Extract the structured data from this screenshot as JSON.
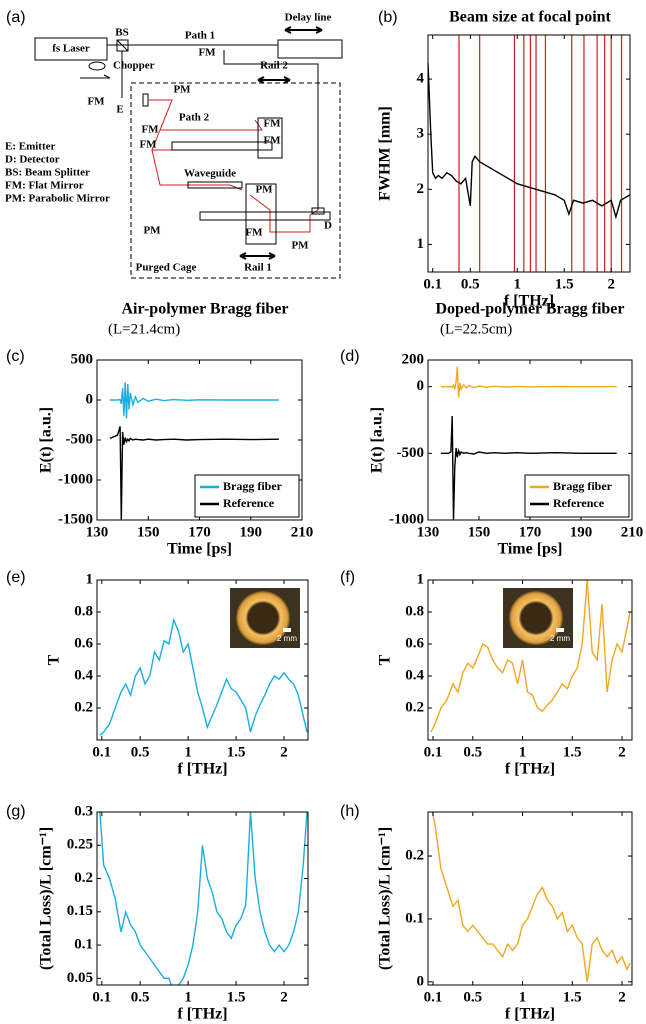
{
  "diagram": {
    "panel": "(a)",
    "labels": [
      "fs Laser",
      "BS",
      "Path 1",
      "Delay line",
      "FM",
      "Chopper",
      "FM",
      "E",
      "PM",
      "Rail 2",
      "Path 2",
      "FM",
      "FM",
      "FM",
      "FM",
      "Waveguide",
      "PM",
      "PM",
      "PM",
      "FM",
      "D",
      "Rail 1",
      "Purged Cage"
    ],
    "legend": [
      "E: Emitter",
      "D: Detector",
      "BS: Beam Splitter",
      "FM: Flat Mirror",
      "PM: Parabolic Mirror"
    ]
  },
  "chart_data": [
    {
      "type": "line",
      "panel": "(b)",
      "title": "Beam size at focal point",
      "x_label": "f [THz]",
      "y_label": "FWHM [mm]",
      "x": [
        0.05,
        0.08,
        0.1,
        0.13,
        0.16,
        0.2,
        0.25,
        0.3,
        0.35,
        0.4,
        0.45,
        0.5,
        0.52,
        0.55,
        0.6,
        0.7,
        0.8,
        0.9,
        1.0,
        1.1,
        1.2,
        1.3,
        1.4,
        1.5,
        1.55,
        1.6,
        1.7,
        1.8,
        1.9,
        2.0,
        2.05,
        2.1,
        2.2
      ],
      "series": [
        {
          "color": "#000000",
          "values": [
            4.3,
            3.0,
            2.3,
            2.2,
            2.25,
            2.2,
            2.3,
            2.25,
            2.15,
            2.1,
            2.2,
            1.7,
            2.5,
            2.6,
            2.5,
            2.4,
            2.3,
            2.2,
            2.1,
            2.05,
            2.0,
            1.95,
            1.9,
            1.8,
            1.55,
            1.8,
            1.75,
            1.8,
            1.7,
            1.8,
            1.5,
            1.8,
            1.9
          ]
        }
      ],
      "vlines": [
        0.38,
        0.6,
        0.97,
        1.07,
        1.14,
        1.2,
        1.3,
        1.58,
        1.71,
        1.85,
        1.93,
        2.0,
        2.11
      ],
      "vline_color": "#cc1f1f",
      "xlim": [
        0.05,
        2.2
      ],
      "xticks": [
        0.1,
        0.5,
        1,
        1.5,
        2
      ],
      "ylim": [
        0.5,
        4.8
      ],
      "yticks": [
        1,
        2,
        3,
        4
      ]
    },
    {
      "type": "line",
      "panel": "(c)",
      "title": "Air-polymer Bragg fiber",
      "subtitle": "(L=21.4cm)",
      "x_label": "Time [ps]",
      "y_label": "E(t) [a.u.]",
      "x": [
        135,
        138,
        139,
        139.5,
        140,
        140.5,
        141,
        141.5,
        142,
        142.5,
        143,
        144,
        145,
        146,
        148,
        150,
        153,
        156,
        160,
        165,
        170,
        180,
        190,
        201
      ],
      "series": [
        {
          "name": "Bragg fiber",
          "color": "#1aaee0",
          "values": [
            0,
            0,
            5,
            -50,
            150,
            -200,
            220,
            -230,
            200,
            -120,
            90,
            -60,
            40,
            -30,
            20,
            -15,
            10,
            -8,
            5,
            -4,
            3,
            0,
            0,
            0
          ]
        },
        {
          "name": "Reference",
          "color": "#000000",
          "values": [
            -480,
            -440,
            -330,
            -1500,
            -400,
            -560,
            -470,
            -520,
            -490,
            -510,
            -480,
            -500,
            -490,
            -495,
            -500,
            -490,
            -500,
            -495,
            -490,
            -500,
            -495,
            -490,
            -495,
            -490
          ]
        }
      ],
      "legend": "lower right",
      "xlim": [
        130,
        210
      ],
      "xticks": [
        130,
        150,
        170,
        190,
        210
      ],
      "ylim": [
        -1500,
        500
      ],
      "yticks": [
        -1500,
        -1000,
        -500,
        0,
        500
      ]
    },
    {
      "type": "line",
      "panel": "(d)",
      "title": "Doped-polymer Bragg fiber",
      "subtitle": "(L=22.5cm)",
      "x_label": "Time [ps]",
      "y_label": "E(t) [a.u.]",
      "x": [
        135,
        138,
        139,
        139.5,
        140,
        140.5,
        141,
        141.5,
        142,
        142.5,
        143,
        144,
        145,
        146,
        148,
        150,
        153,
        156,
        160,
        165,
        170,
        180,
        190,
        204
      ],
      "series": [
        {
          "name": "Bragg fiber",
          "color": "#f0a820",
          "values": [
            0,
            0,
            2,
            -5,
            10,
            -20,
            40,
            150,
            -80,
            30,
            -20,
            15,
            -10,
            8,
            -6,
            5,
            -4,
            3,
            -3,
            2,
            -2,
            1,
            0,
            0
          ]
        },
        {
          "name": "Reference",
          "color": "#000000",
          "values": [
            -500,
            -500,
            -490,
            -220,
            -1000,
            -600,
            -460,
            -530,
            -480,
            -510,
            -490,
            -500,
            -495,
            -500,
            -505,
            -490,
            -500,
            -495,
            -500,
            -495,
            -500,
            -495,
            -500,
            -500
          ]
        }
      ],
      "legend": "lower right",
      "xlim": [
        130,
        210
      ],
      "xticks": [
        130,
        150,
        170,
        190,
        210
      ],
      "ylim": [
        -1000,
        200
      ],
      "yticks": [
        -1000,
        -500,
        0,
        200
      ]
    },
    {
      "type": "line",
      "panel": "(e)",
      "x_label": "f [THz]",
      "y_label": "T",
      "inset_label": "2 mm",
      "x": [
        0.08,
        0.12,
        0.18,
        0.24,
        0.3,
        0.35,
        0.4,
        0.45,
        0.5,
        0.55,
        0.6,
        0.65,
        0.7,
        0.75,
        0.8,
        0.85,
        0.9,
        0.95,
        1.0,
        1.05,
        1.1,
        1.15,
        1.2,
        1.25,
        1.3,
        1.35,
        1.4,
        1.45,
        1.5,
        1.55,
        1.6,
        1.65,
        1.7,
        1.75,
        1.8,
        1.85,
        1.9,
        1.95,
        2.0,
        2.05,
        2.1,
        2.15,
        2.2,
        2.24
      ],
      "series": [
        {
          "color": "#1aaee0",
          "values": [
            0.03,
            0.05,
            0.1,
            0.2,
            0.3,
            0.35,
            0.28,
            0.4,
            0.45,
            0.35,
            0.4,
            0.55,
            0.5,
            0.62,
            0.6,
            0.75,
            0.68,
            0.55,
            0.6,
            0.45,
            0.3,
            0.2,
            0.08,
            0.15,
            0.22,
            0.3,
            0.38,
            0.32,
            0.3,
            0.25,
            0.2,
            0.05,
            0.15,
            0.22,
            0.28,
            0.35,
            0.4,
            0.38,
            0.42,
            0.38,
            0.35,
            0.28,
            0.15,
            0.05
          ]
        }
      ],
      "xlim": [
        0.05,
        2.25
      ],
      "xticks": [
        0.1,
        0.5,
        1,
        1.5,
        2
      ],
      "ylim": [
        0,
        1
      ],
      "yticks": [
        0.2,
        0.4,
        0.6,
        0.8,
        1
      ]
    },
    {
      "type": "line",
      "panel": "(f)",
      "x_label": "f [THz]",
      "y_label": "T",
      "inset_label": "2 mm",
      "x": [
        0.08,
        0.12,
        0.18,
        0.24,
        0.3,
        0.35,
        0.4,
        0.45,
        0.5,
        0.55,
        0.6,
        0.65,
        0.7,
        0.75,
        0.8,
        0.85,
        0.9,
        0.95,
        1.0,
        1.05,
        1.1,
        1.15,
        1.2,
        1.25,
        1.3,
        1.35,
        1.4,
        1.45,
        1.5,
        1.55,
        1.6,
        1.65,
        1.7,
        1.75,
        1.8,
        1.85,
        1.9,
        1.95,
        2.0,
        2.05,
        2.08
      ],
      "series": [
        {
          "color": "#f0a820",
          "values": [
            0.05,
            0.1,
            0.2,
            0.25,
            0.35,
            0.3,
            0.42,
            0.48,
            0.45,
            0.52,
            0.6,
            0.58,
            0.5,
            0.45,
            0.42,
            0.5,
            0.48,
            0.35,
            0.5,
            0.3,
            0.28,
            0.2,
            0.18,
            0.22,
            0.25,
            0.3,
            0.35,
            0.32,
            0.4,
            0.45,
            0.6,
            1.0,
            0.55,
            0.5,
            0.85,
            0.3,
            0.5,
            0.6,
            0.55,
            0.7,
            0.8
          ]
        }
      ],
      "xlim": [
        0.05,
        2.1
      ],
      "xticks": [
        0.1,
        0.5,
        1,
        1.5,
        2
      ],
      "ylim": [
        0,
        1
      ],
      "yticks": [
        0.2,
        0.4,
        0.6,
        0.8,
        1
      ]
    },
    {
      "type": "line",
      "panel": "(g)",
      "x_label": "f [THz]",
      "y_label": "(Total Loss)/L [cm⁻¹]",
      "x": [
        0.08,
        0.12,
        0.18,
        0.24,
        0.3,
        0.35,
        0.4,
        0.45,
        0.5,
        0.55,
        0.6,
        0.65,
        0.7,
        0.75,
        0.8,
        0.85,
        0.9,
        0.95,
        1.0,
        1.05,
        1.1,
        1.15,
        1.2,
        1.25,
        1.3,
        1.35,
        1.4,
        1.45,
        1.5,
        1.55,
        1.6,
        1.65,
        1.7,
        1.75,
        1.8,
        1.85,
        1.9,
        1.95,
        2.0,
        2.05,
        2.1,
        2.15,
        2.2,
        2.24
      ],
      "series": [
        {
          "color": "#1aaee0",
          "values": [
            0.3,
            0.22,
            0.2,
            0.17,
            0.12,
            0.15,
            0.13,
            0.12,
            0.1,
            0.09,
            0.08,
            0.07,
            0.06,
            0.05,
            0.05,
            0.03,
            0.04,
            0.05,
            0.07,
            0.1,
            0.15,
            0.25,
            0.2,
            0.18,
            0.15,
            0.14,
            0.12,
            0.11,
            0.13,
            0.14,
            0.16,
            0.3,
            0.2,
            0.15,
            0.12,
            0.1,
            0.09,
            0.1,
            0.09,
            0.1,
            0.12,
            0.15,
            0.22,
            0.3
          ]
        }
      ],
      "xlim": [
        0.05,
        2.25
      ],
      "xticks": [
        0.1,
        0.5,
        1,
        1.5,
        2
      ],
      "ylim": [
        0.04,
        0.3
      ],
      "yticks": [
        0.05,
        0.1,
        0.15,
        0.2,
        0.25,
        0.3
      ]
    },
    {
      "type": "line",
      "panel": "(h)",
      "x_label": "f [THz]",
      "y_label": "(Total Loss)/L [cm⁻¹]",
      "x": [
        0.08,
        0.12,
        0.18,
        0.24,
        0.3,
        0.35,
        0.4,
        0.45,
        0.5,
        0.55,
        0.6,
        0.65,
        0.7,
        0.75,
        0.8,
        0.85,
        0.9,
        0.95,
        1.0,
        1.05,
        1.1,
        1.15,
        1.2,
        1.25,
        1.3,
        1.35,
        1.4,
        1.45,
        1.5,
        1.55,
        1.6,
        1.65,
        1.7,
        1.75,
        1.8,
        1.85,
        1.9,
        1.95,
        2.0,
        2.05,
        2.08
      ],
      "series": [
        {
          "color": "#f0a820",
          "values": [
            0.28,
            0.25,
            0.18,
            0.15,
            0.12,
            0.13,
            0.09,
            0.08,
            0.09,
            0.08,
            0.07,
            0.06,
            0.06,
            0.05,
            0.04,
            0.06,
            0.05,
            0.06,
            0.09,
            0.1,
            0.12,
            0.14,
            0.15,
            0.13,
            0.12,
            0.1,
            0.11,
            0.08,
            0.09,
            0.07,
            0.06,
            0.0,
            0.06,
            0.07,
            0.05,
            0.04,
            0.05,
            0.03,
            0.04,
            0.02,
            0.03
          ]
        }
      ],
      "xlim": [
        0.05,
        2.1
      ],
      "xticks": [
        0.1,
        0.5,
        1,
        1.5,
        2
      ],
      "ylim": [
        -0.005,
        0.27
      ],
      "yticks": [
        0,
        0.1,
        0.2
      ]
    }
  ]
}
